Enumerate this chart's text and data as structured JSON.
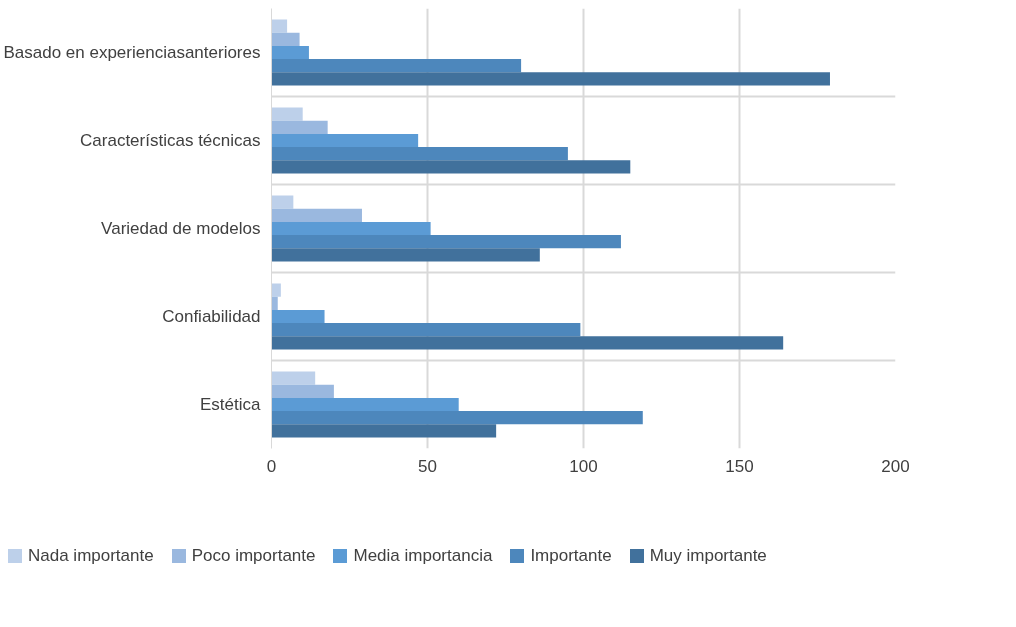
{
  "chart_data": {
    "type": "bar",
    "orientation": "horizontal",
    "categories": [
      "Basado en experienciasanteriores",
      "Características técnicas",
      "Variedad de modelos",
      "Confiabilidad",
      "Estética"
    ],
    "series": [
      {
        "name": "Nada importante",
        "color": "#bdd0ea",
        "values": [
          5,
          10,
          7,
          3,
          14
        ]
      },
      {
        "name": "Poco importante",
        "color": "#9ab8df",
        "values": [
          9,
          18,
          29,
          2,
          20
        ]
      },
      {
        "name": "Media importancia",
        "color": "#5b9bd5",
        "values": [
          12,
          47,
          51,
          17,
          60
        ]
      },
      {
        "name": "Importante",
        "color": "#4d87bc",
        "values": [
          80,
          95,
          112,
          99,
          119
        ]
      },
      {
        "name": "Muy importante",
        "color": "#41719c",
        "values": [
          179,
          115,
          86,
          164,
          72
        ]
      }
    ],
    "xlim": [
      0,
      200
    ],
    "xticks": [
      0,
      50,
      100,
      150,
      200
    ],
    "grid": true,
    "legend": "bottom"
  }
}
